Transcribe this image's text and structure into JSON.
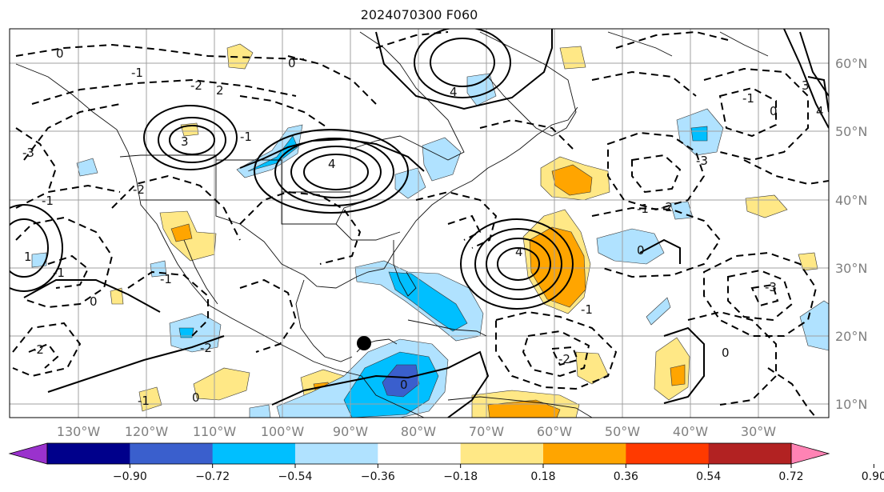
{
  "title": "2024070300 F060",
  "lat_labels": [
    "60°N",
    "50°N",
    "40°N",
    "30°N",
    "20°N",
    "10°N"
  ],
  "lon_labels": [
    "130°W",
    "120°W",
    "110°W",
    "100°W",
    "90°W",
    "80°W",
    "70°W",
    "60°W",
    "50°W",
    "40°W",
    "30°W"
  ],
  "colorbar": {
    "ticks": [
      "−0.90",
      "−0.72",
      "−0.54",
      "−0.36",
      "−0.18",
      "0.18",
      "0.36",
      "0.54",
      "0.72",
      "0.90"
    ],
    "colors": [
      "#9a32cd",
      "#00008b",
      "#3a5fcd",
      "#00bfff",
      "#b0e2ff",
      "#ffffff",
      "#ffe886",
      "#ffa500",
      "#ff3a00",
      "#b22222",
      "#ff83b4"
    ]
  },
  "contour_labels": [
    "0",
    "0",
    "-1",
    "-2",
    "2",
    "4",
    "3",
    "-1",
    "-3",
    "4",
    "-2",
    "-1",
    "1",
    "-1",
    "-1",
    "0",
    "-2",
    "-2",
    "0",
    "-1",
    "-2",
    "4",
    "-1",
    "-1",
    "-3",
    "-2",
    "0",
    "0",
    "-1",
    "3",
    "0",
    "0",
    "-3",
    "4"
  ],
  "marker": "storm-center"
}
